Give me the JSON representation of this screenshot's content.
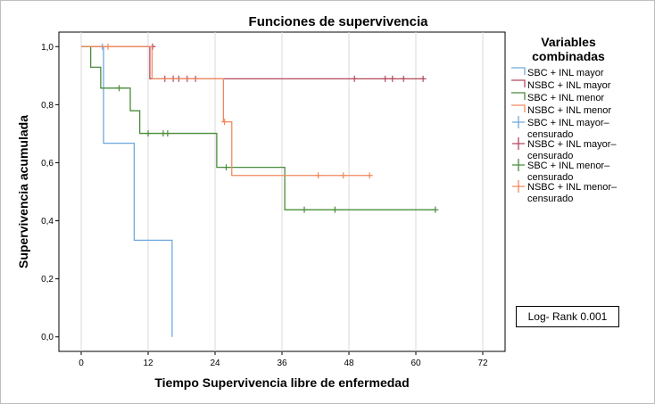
{
  "chart_data": {
    "type": "line",
    "title": "Funciones de supervivencia",
    "xlabel": "Tiempo Supervivencia libre de enfermedad",
    "ylabel": "Supervivencia acumulada",
    "xlim": [
      -4,
      76
    ],
    "ylim": [
      -0.05,
      1.05
    ],
    "xticks": [
      0,
      12,
      24,
      36,
      48,
      60,
      72
    ],
    "xtick_labels": [
      "0",
      "12",
      "24",
      "36",
      "48",
      "60",
      "72"
    ],
    "yticks": [
      0,
      0.2,
      0.4,
      0.6,
      0.8,
      1.0
    ],
    "ytick_labels": [
      "0,0",
      "0,2",
      "0,4",
      "0,6",
      "0,8",
      "1,0"
    ],
    "grid": "vertical",
    "legend": {
      "title_lines": [
        "Variables",
        "combinadas"
      ],
      "placement": "right"
    },
    "series": [
      {
        "name": "SBC + INL mayor",
        "color": "#6fa8dc",
        "steps": [
          [
            0,
            1.0
          ],
          [
            4,
            0.667
          ],
          [
            9.5,
            0.333
          ],
          [
            16.3,
            0.0
          ]
        ],
        "end_x": 16.3,
        "censored": [
          [
            3.8,
            1.0
          ]
        ]
      },
      {
        "name": "NSBC + INL mayor",
        "color": "#b5485d",
        "steps": [
          [
            0,
            1.0
          ],
          [
            12.3,
            0.889
          ]
        ],
        "end_x": 61.5,
        "censored": [
          [
            12.8,
            1.0
          ],
          [
            15,
            0.889
          ],
          [
            16.5,
            0.889
          ],
          [
            17.5,
            0.889
          ],
          [
            19,
            0.889
          ],
          [
            20.5,
            0.889
          ],
          [
            49,
            0.889
          ],
          [
            54.5,
            0.889
          ],
          [
            55.8,
            0.889
          ],
          [
            57.8,
            0.889
          ],
          [
            61.3,
            0.889
          ]
        ]
      },
      {
        "name": "SBC + INL menor",
        "color": "#4a8c3a",
        "steps": [
          [
            0,
            1.0
          ],
          [
            1.7,
            0.929
          ],
          [
            3.5,
            0.857
          ],
          [
            8.8,
            0.779
          ],
          [
            10.5,
            0.701
          ],
          [
            24.3,
            0.584
          ],
          [
            36.5,
            0.438
          ]
        ],
        "end_x": 63.5,
        "censored": [
          [
            6.8,
            0.857
          ],
          [
            12,
            0.701
          ],
          [
            14.7,
            0.701
          ],
          [
            15.5,
            0.701
          ],
          [
            26,
            0.584
          ],
          [
            40,
            0.438
          ],
          [
            45.5,
            0.438
          ],
          [
            63.5,
            0.438
          ]
        ]
      },
      {
        "name": "NSBC + INL menor",
        "color": "#f08a5d",
        "steps": [
          [
            0,
            1.0
          ],
          [
            12.7,
            0.889
          ],
          [
            25.5,
            0.741
          ],
          [
            27,
            0.556
          ]
        ],
        "end_x": 52,
        "censored": [
          [
            4.8,
            1.0
          ],
          [
            25.7,
            0.741
          ],
          [
            42.5,
            0.556
          ],
          [
            47,
            0.556
          ],
          [
            51.7,
            0.556
          ]
        ]
      }
    ],
    "legend_entries": [
      {
        "label_lines": [
          "SBC + INL mayor"
        ],
        "color": "#6fa8dc",
        "kind": "line"
      },
      {
        "label_lines": [
          "NSBC + INL mayor"
        ],
        "color": "#b5485d",
        "kind": "line"
      },
      {
        "label_lines": [
          "SBC + INL menor"
        ],
        "color": "#4a8c3a",
        "kind": "line"
      },
      {
        "label_lines": [
          "NSBC + INL menor"
        ],
        "color": "#f08a5d",
        "kind": "line"
      },
      {
        "label_lines": [
          "SBC + INL mayor–",
          "censurado"
        ],
        "color": "#6fa8dc",
        "kind": "plus"
      },
      {
        "label_lines": [
          "NSBC + INL mayor–",
          "censurado"
        ],
        "color": "#b5485d",
        "kind": "plus"
      },
      {
        "label_lines": [
          "SBC + INL menor–",
          "censurado"
        ],
        "color": "#4a8c3a",
        "kind": "plus"
      },
      {
        "label_lines": [
          "NSBC + INL menor–",
          "censurado"
        ],
        "color": "#f08a5d",
        "kind": "plus"
      }
    ],
    "annotation": "Log- Rank 0.001"
  }
}
